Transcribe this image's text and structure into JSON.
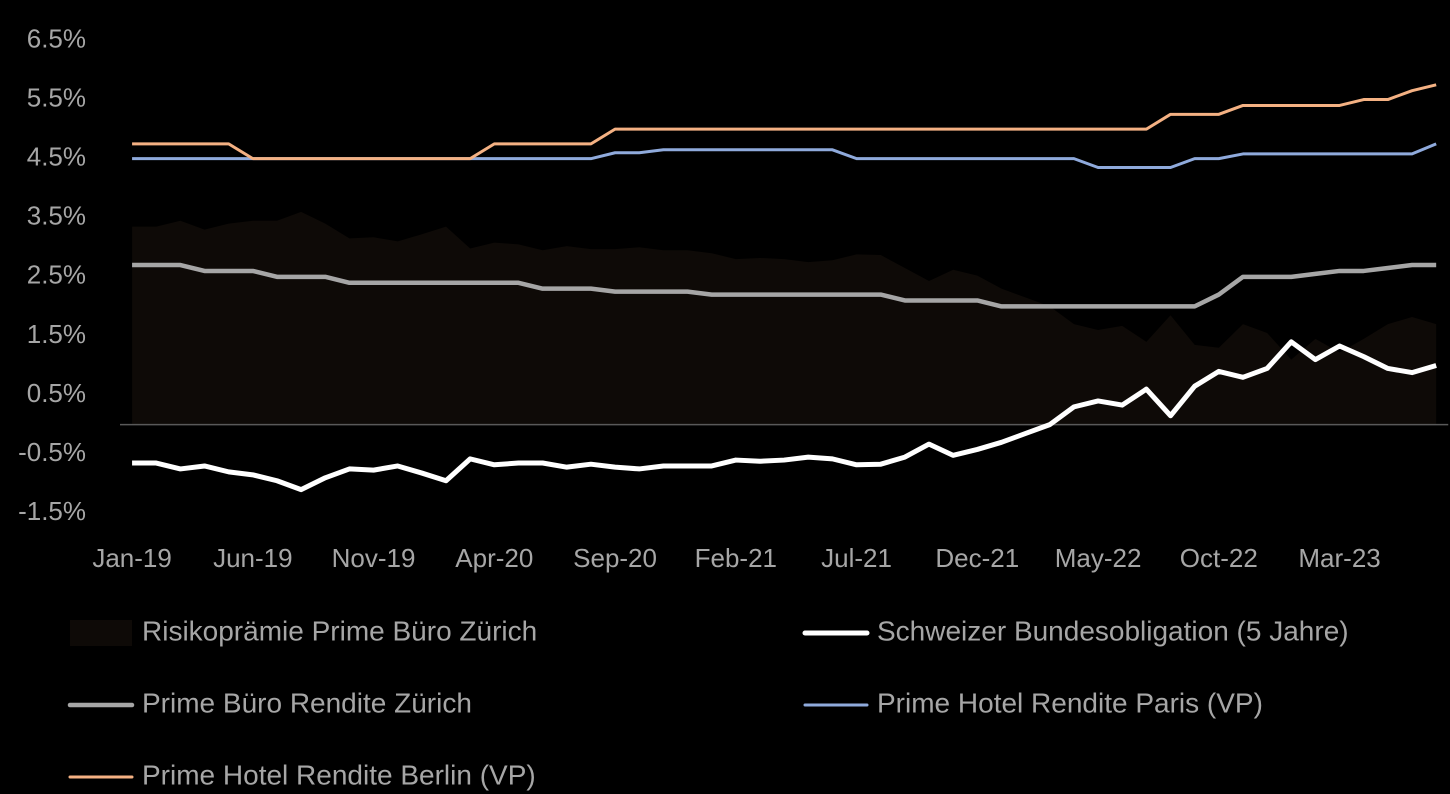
{
  "chart_data": {
    "type": "line",
    "categories": [
      "Jan-19",
      null,
      null,
      null,
      null,
      "Jun-19",
      null,
      null,
      null,
      null,
      "Nov-19",
      null,
      null,
      null,
      null,
      "Apr-20",
      null,
      null,
      null,
      null,
      "Sep-20",
      null,
      null,
      null,
      null,
      "Feb-21",
      null,
      null,
      null,
      null,
      "Jul-21",
      null,
      null,
      null,
      null,
      "Dec-21",
      null,
      null,
      null,
      null,
      "May-22",
      null,
      null,
      null,
      null,
      "Oct-22",
      null,
      null,
      null,
      null,
      "Mar-23",
      null,
      null,
      null,
      null
    ],
    "ylim": [
      -2,
      7
    ],
    "yticks": [
      {
        "value": -1.5,
        "label": "-1.5%"
      },
      {
        "value": -0.5,
        "label": "-0.5%"
      },
      {
        "value": 0.5,
        "label": "0.5%"
      },
      {
        "value": 1.5,
        "label": "1.5%"
      },
      {
        "value": 2.5,
        "label": "2.5%"
      },
      {
        "value": 3.5,
        "label": "3.5%"
      },
      {
        "value": 4.5,
        "label": "4.5%"
      },
      {
        "value": 5.5,
        "label": "5.5%"
      },
      {
        "value": 6.5,
        "label": "6.5%"
      }
    ],
    "legend": "bottom",
    "series": [
      {
        "name": "Risikoprämie Prime Büro Zürich",
        "type": "area",
        "color": "#0e0a07",
        "values": [
          3.35,
          3.35,
          3.45,
          3.3,
          3.4,
          3.45,
          3.45,
          3.6,
          3.4,
          3.15,
          3.17,
          3.1,
          3.22,
          3.35,
          2.98,
          3.08,
          3.05,
          2.95,
          3.02,
          2.97,
          2.97,
          3.0,
          2.95,
          2.95,
          2.9,
          2.8,
          2.82,
          2.8,
          2.75,
          2.78,
          2.88,
          2.87,
          2.65,
          2.43,
          2.62,
          2.52,
          2.3,
          2.15,
          2.0,
          1.7,
          1.6,
          1.67,
          1.4,
          1.85,
          1.35,
          1.3,
          1.7,
          1.55,
          1.1,
          1.45,
          1.22,
          1.45,
          1.7,
          1.82,
          1.7
        ]
      },
      {
        "name": "Schweizer Bundesobligation (5 Jahre)",
        "type": "line",
        "color": "#ffffff",
        "width": 5,
        "values": [
          -0.65,
          -0.65,
          -0.75,
          -0.7,
          -0.8,
          -0.85,
          -0.95,
          -1.1,
          -0.9,
          -0.75,
          -0.77,
          -0.7,
          -0.82,
          -0.95,
          -0.58,
          -0.68,
          -0.65,
          -0.65,
          -0.72,
          -0.67,
          -0.72,
          -0.75,
          -0.7,
          -0.7,
          -0.7,
          -0.6,
          -0.62,
          -0.6,
          -0.55,
          -0.58,
          -0.68,
          -0.67,
          -0.55,
          -0.33,
          -0.52,
          -0.42,
          -0.3,
          -0.15,
          0.0,
          0.3,
          0.4,
          0.33,
          0.6,
          0.15,
          0.65,
          0.9,
          0.8,
          0.95,
          1.4,
          1.1,
          1.33,
          1.15,
          0.95,
          0.88,
          1.0
        ]
      },
      {
        "name": "Prime Büro Rendite Zürich",
        "type": "line",
        "color": "#a6a6a6",
        "width": 4.5,
        "values": [
          2.7,
          2.7,
          2.7,
          2.6,
          2.6,
          2.6,
          2.5,
          2.5,
          2.5,
          2.4,
          2.4,
          2.4,
          2.4,
          2.4,
          2.4,
          2.4,
          2.4,
          2.3,
          2.3,
          2.3,
          2.25,
          2.25,
          2.25,
          2.25,
          2.2,
          2.2,
          2.2,
          2.2,
          2.2,
          2.2,
          2.2,
          2.2,
          2.1,
          2.1,
          2.1,
          2.1,
          2.0,
          2.0,
          2.0,
          2.0,
          2.0,
          2.0,
          2.0,
          2.0,
          2.0,
          2.2,
          2.5,
          2.5,
          2.5,
          2.55,
          2.6,
          2.6,
          2.65,
          2.7,
          2.7
        ]
      },
      {
        "name": "Prime Hotel Rendite Paris (VP)",
        "type": "line",
        "color": "#8faadc",
        "width": 3,
        "values": [
          4.5,
          4.5,
          4.5,
          4.5,
          4.5,
          4.5,
          4.5,
          4.5,
          4.5,
          4.5,
          4.5,
          4.5,
          4.5,
          4.5,
          4.5,
          4.5,
          4.5,
          4.5,
          4.5,
          4.5,
          4.6,
          4.6,
          4.65,
          4.65,
          4.65,
          4.65,
          4.65,
          4.65,
          4.65,
          4.65,
          4.5,
          4.5,
          4.5,
          4.5,
          4.5,
          4.5,
          4.5,
          4.5,
          4.5,
          4.5,
          4.35,
          4.35,
          4.35,
          4.35,
          4.5,
          4.5,
          4.58,
          4.58,
          4.58,
          4.58,
          4.58,
          4.58,
          4.58,
          4.58,
          4.75
        ]
      },
      {
        "name": "Prime Hotel Rendite Berlin (VP)",
        "type": "line",
        "color": "#f4b183",
        "width": 3,
        "values": [
          4.75,
          4.75,
          4.75,
          4.75,
          4.75,
          4.5,
          4.5,
          4.5,
          4.5,
          4.5,
          4.5,
          4.5,
          4.5,
          4.5,
          4.5,
          4.75,
          4.75,
          4.75,
          4.75,
          4.75,
          5.0,
          5.0,
          5.0,
          5.0,
          5.0,
          5.0,
          5.0,
          5.0,
          5.0,
          5.0,
          5.0,
          5.0,
          5.0,
          5.0,
          5.0,
          5.0,
          5.0,
          5.0,
          5.0,
          5.0,
          5.0,
          5.0,
          5.0,
          5.25,
          5.25,
          5.25,
          5.4,
          5.4,
          5.4,
          5.4,
          5.4,
          5.5,
          5.5,
          5.65,
          5.75
        ]
      }
    ]
  }
}
